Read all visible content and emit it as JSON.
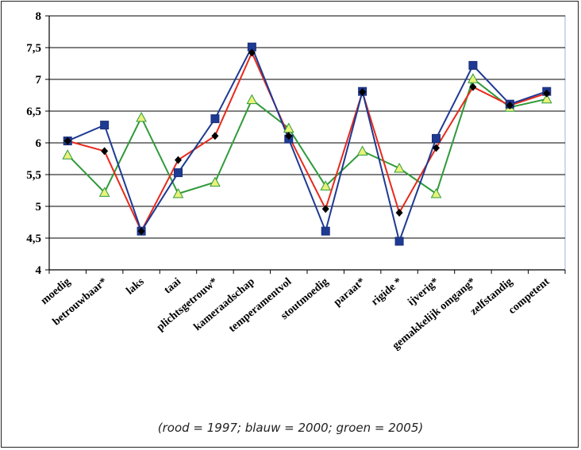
{
  "caption": "(rood = 1997; blauw = 2000; groen = 2005)",
  "chart_data": {
    "type": "line",
    "categories": [
      "moedig",
      "betrouwbaar*",
      "laks",
      "taai",
      "plichtsgetrouw*",
      "kameraadschap",
      "temperamentvol",
      "stoutmoedig",
      "paraat*",
      "rigide *",
      "ijverig*",
      "gemakkelijk omgang*",
      "zelfstandig",
      "competent"
    ],
    "ylim": [
      4,
      8
    ],
    "yticks": [
      "4",
      "4,5",
      "5",
      "5,5",
      "6",
      "6,5",
      "7",
      "7,5",
      "8"
    ],
    "ytick_values": [
      4,
      4.5,
      5,
      5.5,
      6,
      6.5,
      7,
      7.5,
      8
    ],
    "grid": true,
    "series": [
      {
        "key": "rood",
        "color": "#e8291c",
        "marker": "diamond",
        "marker_color": "#000000",
        "values": [
          6.03,
          5.87,
          4.61,
          5.73,
          6.11,
          7.42,
          6.11,
          4.96,
          6.8,
          4.9,
          5.92,
          6.88,
          6.59,
          6.78
        ]
      },
      {
        "key": "blauw",
        "color": "#1f3a93",
        "marker": "square",
        "marker_color": "#1f3a93",
        "values": [
          6.03,
          6.28,
          4.61,
          5.53,
          6.38,
          7.51,
          6.06,
          4.61,
          6.81,
          4.45,
          6.07,
          7.22,
          6.61,
          6.81
        ]
      },
      {
        "key": "groen",
        "color": "#2f9a3a",
        "marker": "triangle",
        "marker_color": "#e9f27a",
        "values": [
          5.81,
          5.22,
          6.4,
          5.2,
          5.38,
          6.68,
          6.23,
          5.32,
          5.87,
          5.6,
          5.2,
          7.01,
          6.56,
          6.69
        ]
      }
    ]
  }
}
